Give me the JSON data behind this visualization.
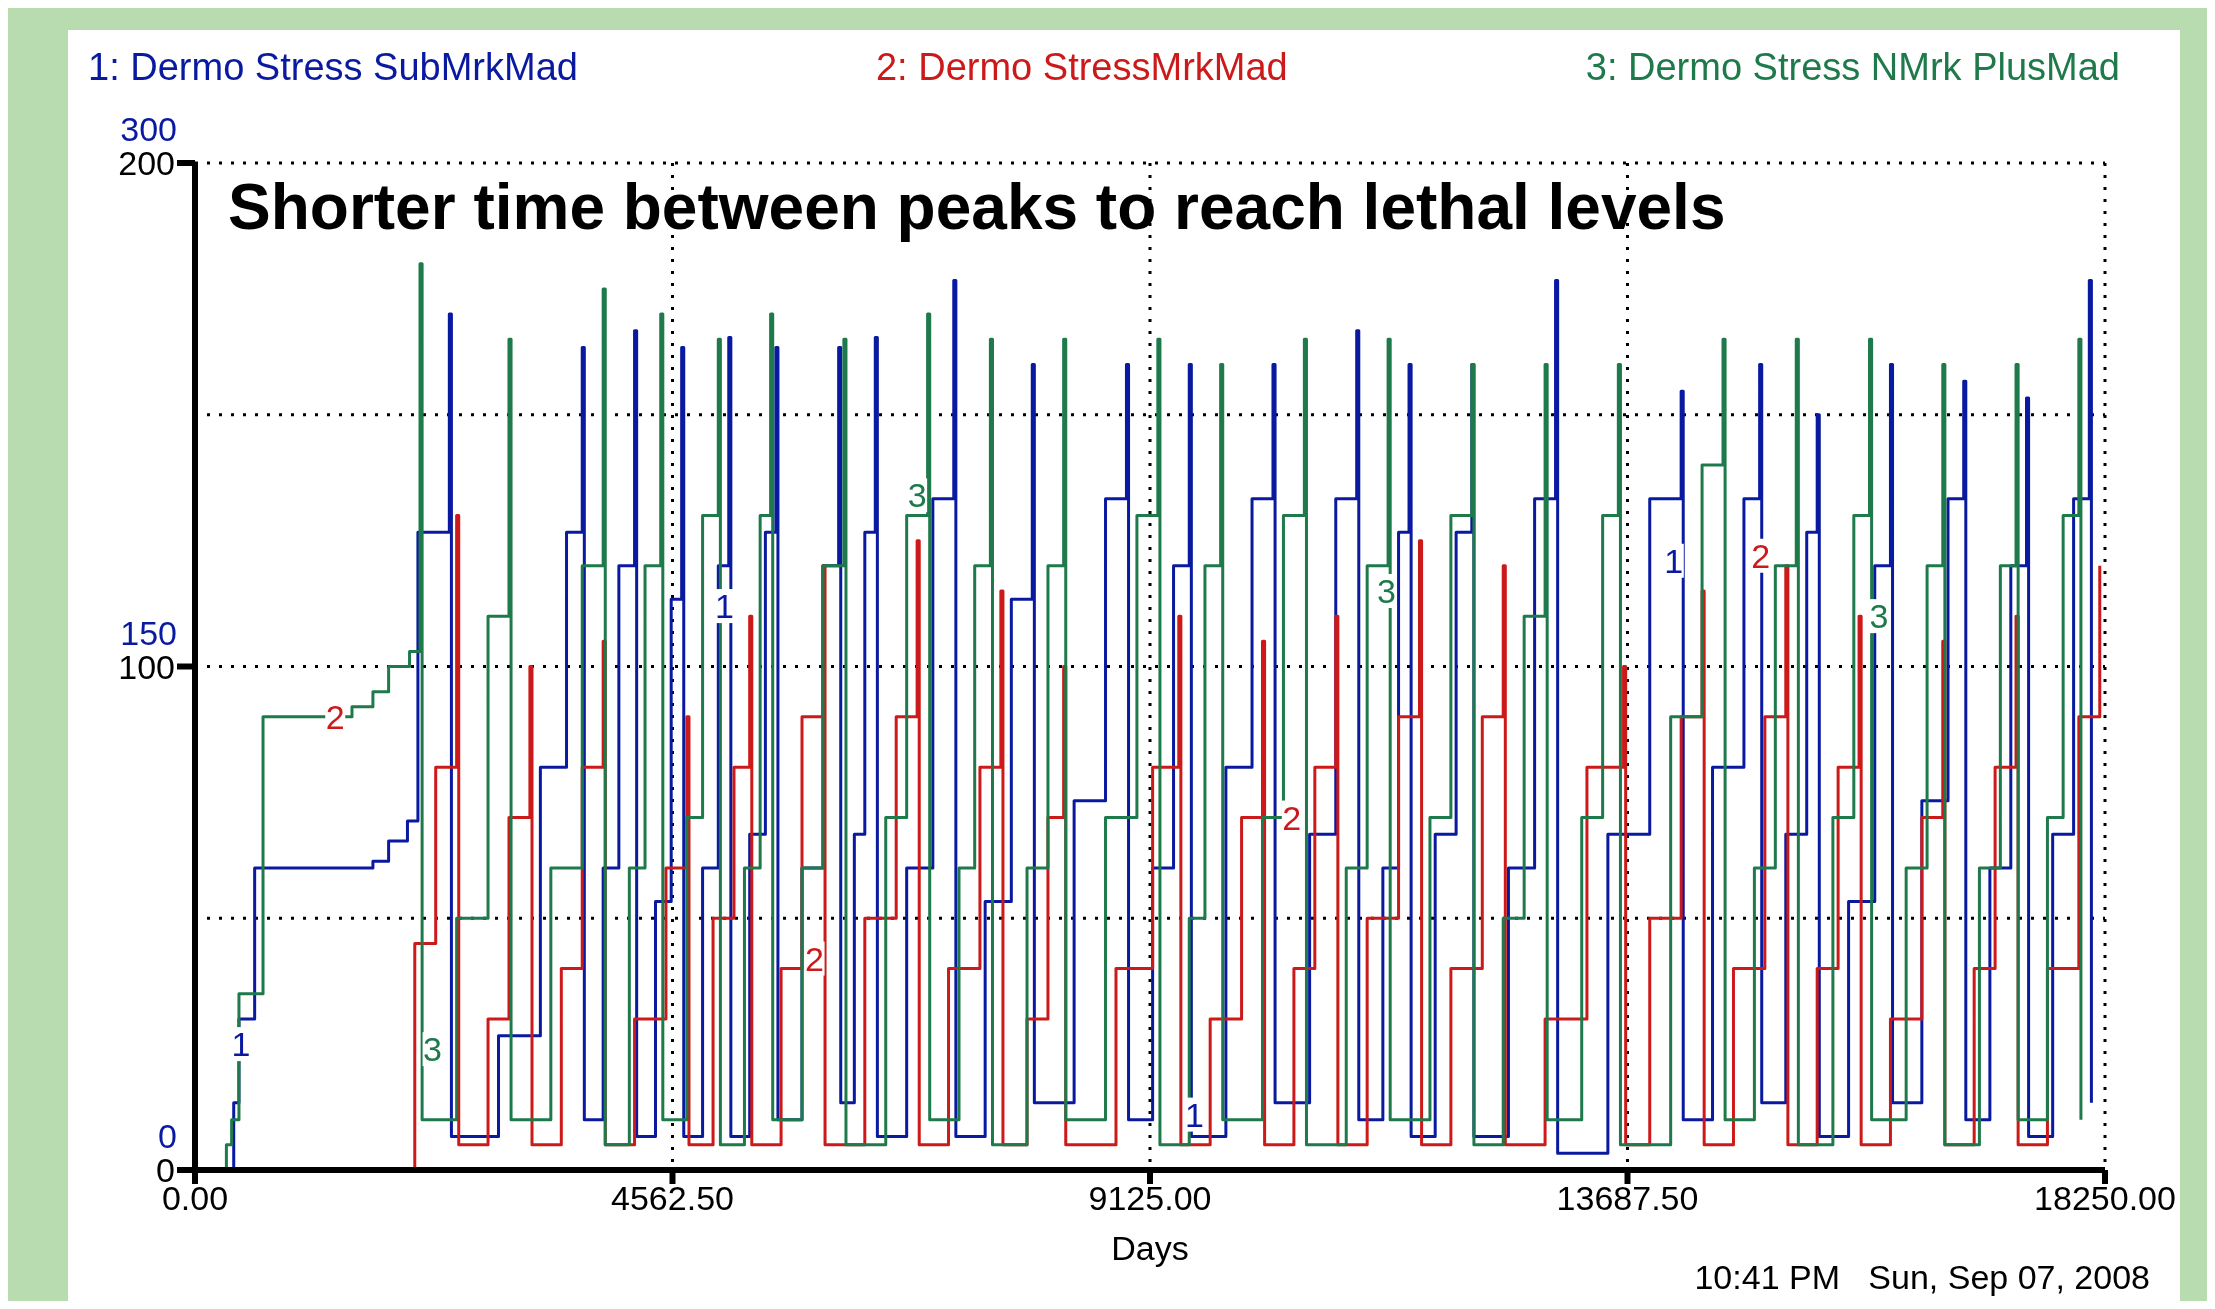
{
  "chart_data": {
    "type": "step",
    "title": "Shorter time between peaks to reach lethal levels",
    "xlabel": "Days",
    "annotations": [
      "10:41 PM   Sun, Sep 07, 2008",
      "1",
      "1",
      "1",
      "1",
      "2",
      "2",
      "2",
      "2",
      "3",
      "3",
      "3",
      "3"
    ],
    "xlim": [
      0,
      18250
    ],
    "xticks": [
      {
        "value": 0,
        "label": "0.00"
      },
      {
        "value": 4562.5,
        "label": "4562.50"
      },
      {
        "value": 9125,
        "label": "9125.00"
      },
      {
        "value": 13687.5,
        "label": "13687.50"
      },
      {
        "value": 18250,
        "label": "18250.00"
      }
    ],
    "ylim": [
      0,
      200
    ],
    "yticks": [
      0,
      100,
      200
    ],
    "y2lim": [
      0,
      300
    ],
    "y2ticks": [
      0,
      150,
      300
    ],
    "grid": true,
    "legend": "top",
    "marker": "none",
    "line_style": "solid",
    "series": [
      {
        "name": "1: Dermo Stress SubMrkMad",
        "color": "#0a1aa0",
        "axis": "y2",
        "x": [
          0,
          300,
          370,
          420,
          570,
          1700,
          1850,
          2030,
          2130,
          2300,
          2430,
          2450,
          2900,
          3300,
          3550,
          3700,
          3720,
          3900,
          4050,
          4200,
          4220,
          4400,
          4550,
          4650,
          4670,
          4850,
          5000,
          5100,
          5120,
          5300,
          5450,
          5550,
          5570,
          5800,
          6000,
          6150,
          6170,
          6300,
          6400,
          6500,
          6520,
          6800,
          7050,
          7250,
          7270,
          7550,
          7800,
          8000,
          8020,
          8400,
          8700,
          8900,
          8920,
          9150,
          9350,
          9500,
          9520,
          9850,
          10100,
          10300,
          10320,
          10650,
          10900,
          11100,
          11120,
          11350,
          11500,
          11600,
          11620,
          11850,
          12050,
          12200,
          12220,
          12550,
          12800,
          13000,
          13020,
          13500,
          13900,
          14200,
          14220,
          14500,
          14800,
          14950,
          14970,
          15200,
          15400,
          15500,
          15520,
          15800,
          16050,
          16200,
          16220,
          16500,
          16750,
          16900,
          16920,
          17150,
          17350,
          17500,
          17520,
          17750,
          17950,
          18100,
          18120
        ],
        "values": [
          0,
          0,
          20,
          45,
          90,
          92,
          98,
          104,
          190,
          190,
          255,
          10,
          40,
          120,
          190,
          245,
          15,
          90,
          180,
          250,
          10,
          80,
          170,
          245,
          10,
          90,
          180,
          248,
          10,
          100,
          190,
          245,
          15,
          90,
          180,
          245,
          20,
          100,
          190,
          248,
          10,
          90,
          200,
          265,
          10,
          80,
          170,
          240,
          20,
          110,
          200,
          240,
          15,
          90,
          180,
          240,
          10,
          120,
          200,
          240,
          20,
          100,
          200,
          250,
          15,
          90,
          190,
          240,
          10,
          100,
          190,
          240,
          10,
          90,
          200,
          265,
          5,
          100,
          200,
          232,
          15,
          120,
          200,
          240,
          20,
          100,
          190,
          225,
          10,
          80,
          180,
          240,
          20,
          110,
          200,
          235,
          15,
          90,
          180,
          230,
          10,
          100,
          200,
          265,
          20
        ]
      },
      {
        "name": "2: Dermo StressMrkMad",
        "color": "#cc1a1a",
        "x": [
          0,
          2030,
          2100,
          2300,
          2500,
          2520,
          2800,
          3000,
          3200,
          3220,
          3500,
          3700,
          3900,
          3920,
          4200,
          4500,
          4700,
          4720,
          4950,
          5150,
          5300,
          5320,
          5600,
          5800,
          6000,
          6020,
          6400,
          6700,
          6900,
          6920,
          7200,
          7500,
          7700,
          7720,
          7950,
          8150,
          8300,
          8320,
          8800,
          9150,
          9400,
          9420,
          9700,
          10000,
          10200,
          10220,
          10500,
          10700,
          10900,
          10920,
          11200,
          11500,
          11700,
          11720,
          12000,
          12300,
          12500,
          12520,
          12900,
          13300,
          13650,
          13670,
          13900,
          14200,
          14400,
          14420,
          14700,
          15000,
          15200,
          15220,
          15500,
          15700,
          15900,
          15920,
          16200,
          16500,
          16700,
          16720,
          17000,
          17200,
          17400,
          17420,
          17700,
          18000,
          18200
        ],
        "values": [
          0,
          0,
          45,
          80,
          130,
          5,
          30,
          70,
          100,
          5,
          40,
          80,
          105,
          5,
          30,
          60,
          90,
          5,
          50,
          80,
          110,
          5,
          40,
          90,
          120,
          5,
          50,
          90,
          125,
          5,
          40,
          80,
          115,
          5,
          30,
          70,
          100,
          5,
          40,
          80,
          110,
          5,
          30,
          70,
          105,
          5,
          40,
          80,
          110,
          5,
          50,
          90,
          125,
          5,
          40,
          90,
          120,
          5,
          30,
          80,
          100,
          5,
          50,
          90,
          115,
          5,
          40,
          90,
          120,
          5,
          40,
          80,
          110,
          5,
          30,
          70,
          105,
          5,
          40,
          80,
          110,
          5,
          40,
          90,
          120
        ]
      },
      {
        "name": "3: Dermo Stress NMrk PlusMad",
        "color": "#1e7a4a",
        "x": [
          0,
          250,
          300,
          350,
          420,
          650,
          1500,
          1700,
          1850,
          2050,
          2150,
          2170,
          2500,
          2800,
          3000,
          3020,
          3400,
          3700,
          3900,
          3920,
          4150,
          4300,
          4450,
          4470,
          4700,
          4850,
          5000,
          5020,
          5250,
          5400,
          5500,
          5520,
          5800,
          6000,
          6200,
          6220,
          6600,
          6800,
          7000,
          7020,
          7300,
          7450,
          7600,
          7620,
          7950,
          8150,
          8300,
          8320,
          8700,
          9000,
          9200,
          9220,
          9500,
          9650,
          9800,
          9820,
          10200,
          10400,
          10600,
          10620,
          11000,
          11200,
          11400,
          11420,
          11800,
          12000,
          12200,
          12220,
          12500,
          12700,
          12900,
          12920,
          13250,
          13450,
          13600,
          13620,
          14100,
          14400,
          14600,
          14620,
          14900,
          15100,
          15300,
          15320,
          15650,
          15850,
          16000,
          16020,
          16350,
          16550,
          16700,
          16720,
          17050,
          17250,
          17400,
          17420,
          17700,
          17850,
          18000,
          18020
        ],
        "values": [
          0,
          0,
          5,
          10,
          35,
          90,
          92,
          95,
          100,
          103,
          180,
          10,
          50,
          110,
          165,
          10,
          60,
          120,
          175,
          5,
          60,
          120,
          170,
          10,
          70,
          130,
          165,
          5,
          60,
          130,
          170,
          10,
          60,
          120,
          165,
          5,
          70,
          130,
          170,
          10,
          60,
          120,
          165,
          5,
          60,
          120,
          165,
          10,
          70,
          130,
          165,
          5,
          50,
          120,
          160,
          10,
          70,
          130,
          165,
          5,
          60,
          120,
          165,
          10,
          70,
          130,
          160,
          5,
          50,
          110,
          160,
          10,
          70,
          130,
          160,
          5,
          90,
          140,
          165,
          10,
          60,
          120,
          165,
          5,
          70,
          130,
          165,
          10,
          60,
          120,
          160,
          5,
          60,
          120,
          160,
          10,
          70,
          130,
          165,
          10
        ]
      }
    ]
  }
}
